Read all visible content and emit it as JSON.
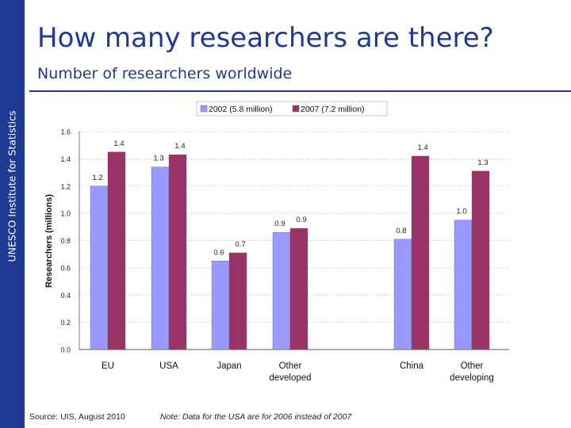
{
  "slide": {
    "side_label": "UNESCO Institute for Statistics",
    "title": "How many researchers are there?",
    "subtitle": "Number of researchers worldwide",
    "source": "Source: UIS, August 2010",
    "note": "Note: Data for the USA are for 2006 instead of 2007"
  },
  "colors": {
    "accent": "#1f3a93",
    "series_2002": "#9999ff",
    "series_2007": "#993366"
  },
  "chart_data": {
    "type": "bar",
    "title": "",
    "xlabel": "",
    "ylabel": "Researchers (millions)",
    "ylim": [
      0,
      1.6
    ],
    "yticks": [
      "0.0",
      "0.2",
      "0.4",
      "0.6",
      "0.8",
      "1.0",
      "1.2",
      "1.4",
      "1.6"
    ],
    "grid": true,
    "legend_position": "top",
    "categories": [
      "EU",
      "USA",
      "Japan",
      "Other developed",
      "China",
      "Other developing"
    ],
    "series": [
      {
        "name": "2002 (5.8 million)",
        "values": [
          1.2,
          1.34,
          0.65,
          0.86,
          0.81,
          0.95
        ],
        "labels": [
          "1.2",
          "1.3",
          "0.6",
          "0.9",
          "0.8",
          "1.0"
        ]
      },
      {
        "name": "2007 (7.2 million)",
        "values": [
          1.45,
          1.43,
          0.71,
          0.89,
          1.42,
          1.31
        ],
        "labels": [
          "1.4",
          "1.4",
          "0.7",
          "0.9",
          "1.4",
          "1.3"
        ]
      }
    ]
  }
}
